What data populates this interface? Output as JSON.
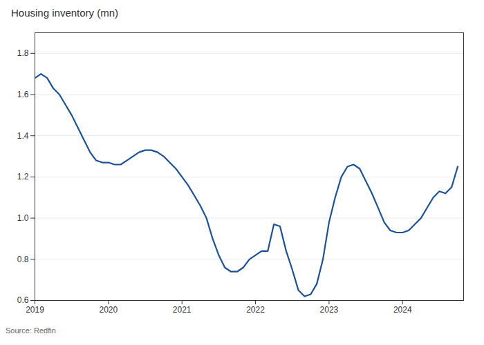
{
  "chart_data": {
    "type": "line",
    "title": "Housing inventory (mn)",
    "source": "Source: Redfin",
    "x": [
      2019.0,
      2019.083,
      2019.167,
      2019.25,
      2019.333,
      2019.417,
      2019.5,
      2019.583,
      2019.667,
      2019.75,
      2019.833,
      2019.917,
      2020.0,
      2020.083,
      2020.167,
      2020.25,
      2020.333,
      2020.417,
      2020.5,
      2020.583,
      2020.667,
      2020.75,
      2020.833,
      2020.917,
      2021.0,
      2021.083,
      2021.167,
      2021.25,
      2021.333,
      2021.417,
      2021.5,
      2021.583,
      2021.667,
      2021.75,
      2021.833,
      2021.917,
      2022.0,
      2022.083,
      2022.167,
      2022.25,
      2022.333,
      2022.417,
      2022.5,
      2022.583,
      2022.667,
      2022.75,
      2022.833,
      2022.917,
      2023.0,
      2023.083,
      2023.167,
      2023.25,
      2023.333,
      2023.417,
      2023.5,
      2023.583,
      2023.667,
      2023.75,
      2023.833,
      2023.917,
      2024.0,
      2024.083,
      2024.167,
      2024.25,
      2024.333,
      2024.417,
      2024.5,
      2024.583,
      2024.667,
      2024.75
    ],
    "values": [
      1.68,
      1.7,
      1.68,
      1.63,
      1.6,
      1.55,
      1.5,
      1.44,
      1.38,
      1.32,
      1.28,
      1.27,
      1.27,
      1.26,
      1.26,
      1.28,
      1.3,
      1.32,
      1.33,
      1.33,
      1.32,
      1.3,
      1.27,
      1.24,
      1.2,
      1.16,
      1.11,
      1.06,
      1.0,
      0.9,
      0.82,
      0.76,
      0.74,
      0.74,
      0.76,
      0.8,
      0.82,
      0.84,
      0.84,
      0.97,
      0.96,
      0.84,
      0.75,
      0.65,
      0.62,
      0.63,
      0.68,
      0.8,
      0.98,
      1.1,
      1.2,
      1.25,
      1.26,
      1.24,
      1.18,
      1.12,
      1.05,
      0.98,
      0.94,
      0.93,
      0.93,
      0.94,
      0.97,
      1.0,
      1.05,
      1.1,
      1.13,
      1.12,
      1.15,
      1.25
    ],
    "color": "#1a5299",
    "xlim": [
      2019.0,
      2024.83
    ],
    "xticks": [
      2019,
      2020,
      2021,
      2022,
      2023,
      2024
    ],
    "ylim": [
      0.6,
      1.9
    ],
    "yticks": [
      0.6,
      0.8,
      {
        "value": 1.0,
        "label": "1.0"
      },
      1.2,
      1.4,
      1.6,
      1.8
    ],
    "grid": true
  }
}
